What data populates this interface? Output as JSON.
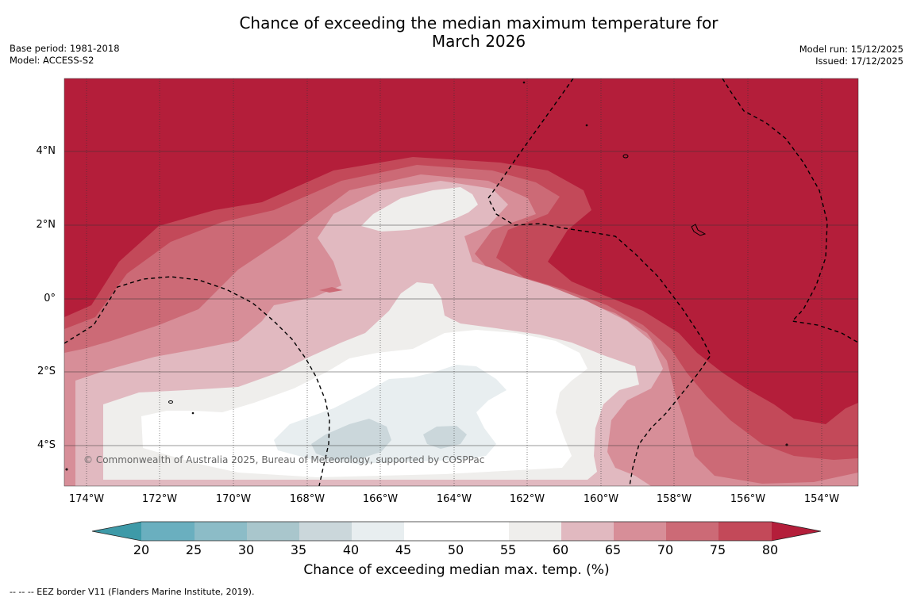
{
  "title_line1": "Chance of exceeding the median maximum temperature for",
  "title_line2": "March 2026",
  "meta_left": {
    "base_period": "Base period: 1981-2018",
    "model": "Model: ACCESS-S2"
  },
  "meta_right": {
    "model_run": "Model run: 15/12/2025",
    "issued": "Issued: 17/12/2025"
  },
  "copyright": "© Commonwealth of Australia 2025, Bureau of Meteorology, supported by COSPPac",
  "axes": {
    "lat_labels": [
      "4°N",
      "2°N",
      "0°",
      "2°S",
      "4°S"
    ],
    "lon_labels": [
      "174°W",
      "172°W",
      "170°W",
      "168°W",
      "166°W",
      "164°W",
      "162°W",
      "160°W",
      "158°W",
      "156°W",
      "154°W"
    ]
  },
  "colorbar": {
    "ticks": [
      "20",
      "25",
      "30",
      "35",
      "40",
      "45",
      "50",
      "55",
      "60",
      "65",
      "70",
      "75",
      "80"
    ],
    "label": "Chance of exceeding median max. temp. (%)",
    "colors": {
      "below20": "#3e9aa8",
      "20-25": "#6aafbf",
      "25-30": "#8cbcc7",
      "30-35": "#a9c6cc",
      "35-40": "#cbd7db",
      "40-45": "#e8eef0",
      "45-50": "#ffffff",
      "50-55": "#ffffff",
      "55-60": "#efeeec",
      "60-65": "#e1b9c0",
      "65-70": "#d78e98",
      "70-75": "#cc6a76",
      "75-80": "#c34959",
      "above80": "#b41e3a"
    }
  },
  "footer": "--  --  -- EEZ border V11 (Flanders Marine Institute, 2019)."
}
